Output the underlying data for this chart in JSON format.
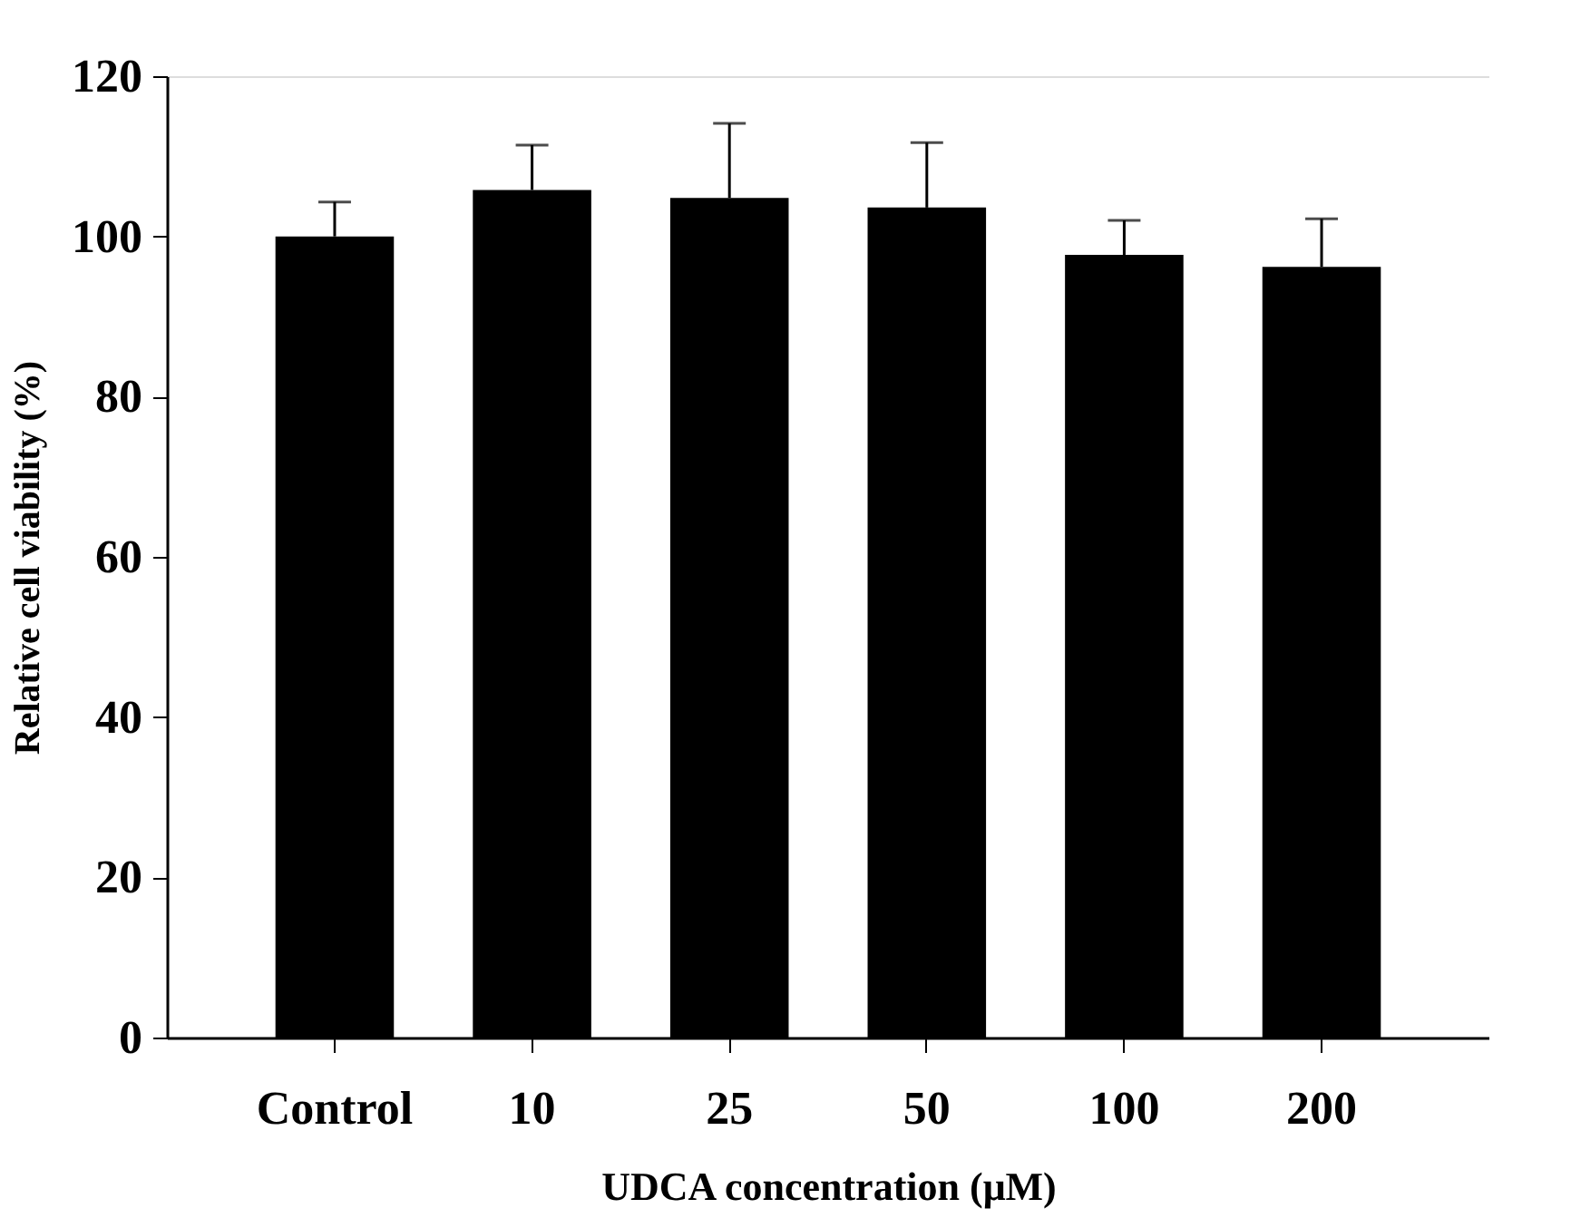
{
  "chart_data": {
    "type": "bar",
    "xlabel": "UDCA concentration (μM)",
    "ylabel": "Relative cell viability (%)",
    "categories": [
      "Control",
      "10",
      "25",
      "50",
      "100",
      "200"
    ],
    "values": [
      100.0,
      105.8,
      104.8,
      103.6,
      97.7,
      96.2
    ],
    "errors": [
      4.3,
      5.6,
      9.3,
      8.1,
      4.3,
      6.0
    ],
    "color": "#000000",
    "ylim": [
      0,
      120
    ],
    "yticks": [
      0,
      20,
      40,
      60,
      80,
      100,
      120
    ],
    "grid": false
  }
}
